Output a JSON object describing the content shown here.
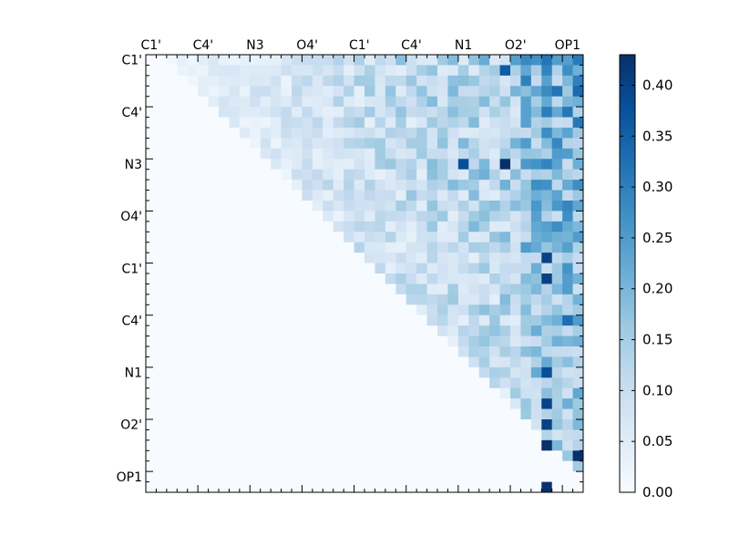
{
  "chart_data": {
    "type": "heatmap",
    "title": "",
    "xlabel": "",
    "ylabel": "",
    "n": 42,
    "tick_labels": [
      "C1'",
      "C4'",
      "N3",
      "O4'",
      "C1'",
      "C4'",
      "N1",
      "O2'",
      "OP1"
    ],
    "tick_every": 5,
    "colormap": "Blues",
    "colorbar": {
      "vmin": 0.0,
      "vmax": 0.43,
      "ticks": [
        "0.00",
        "0.05",
        "0.10",
        "0.15",
        "0.20",
        "0.25",
        "0.30",
        "0.35",
        "0.40"
      ]
    },
    "matrix_structure": "upper triangular",
    "values_note": "cell values estimated by eye; full matrix generated from pattern",
    "highlight_cells": [
      {
        "row": 1,
        "col": 34,
        "value": 0.36
      },
      {
        "row": 10,
        "col": 30,
        "value": 0.38
      },
      {
        "row": 10,
        "col": 34,
        "value": 0.43
      },
      {
        "row": 19,
        "col": 38,
        "value": 0.4
      },
      {
        "row": 21,
        "col": 38,
        "value": 0.4
      },
      {
        "row": 25,
        "col": 40,
        "value": 0.33
      },
      {
        "row": 30,
        "col": 38,
        "value": 0.38
      },
      {
        "row": 33,
        "col": 38,
        "value": 0.4
      },
      {
        "row": 35,
        "col": 38,
        "value": 0.4
      },
      {
        "row": 37,
        "col": 38,
        "value": 0.43
      },
      {
        "row": 38,
        "col": 41,
        "value": 0.43
      },
      {
        "row": 41,
        "col": 38,
        "value": 0.43
      }
    ]
  }
}
